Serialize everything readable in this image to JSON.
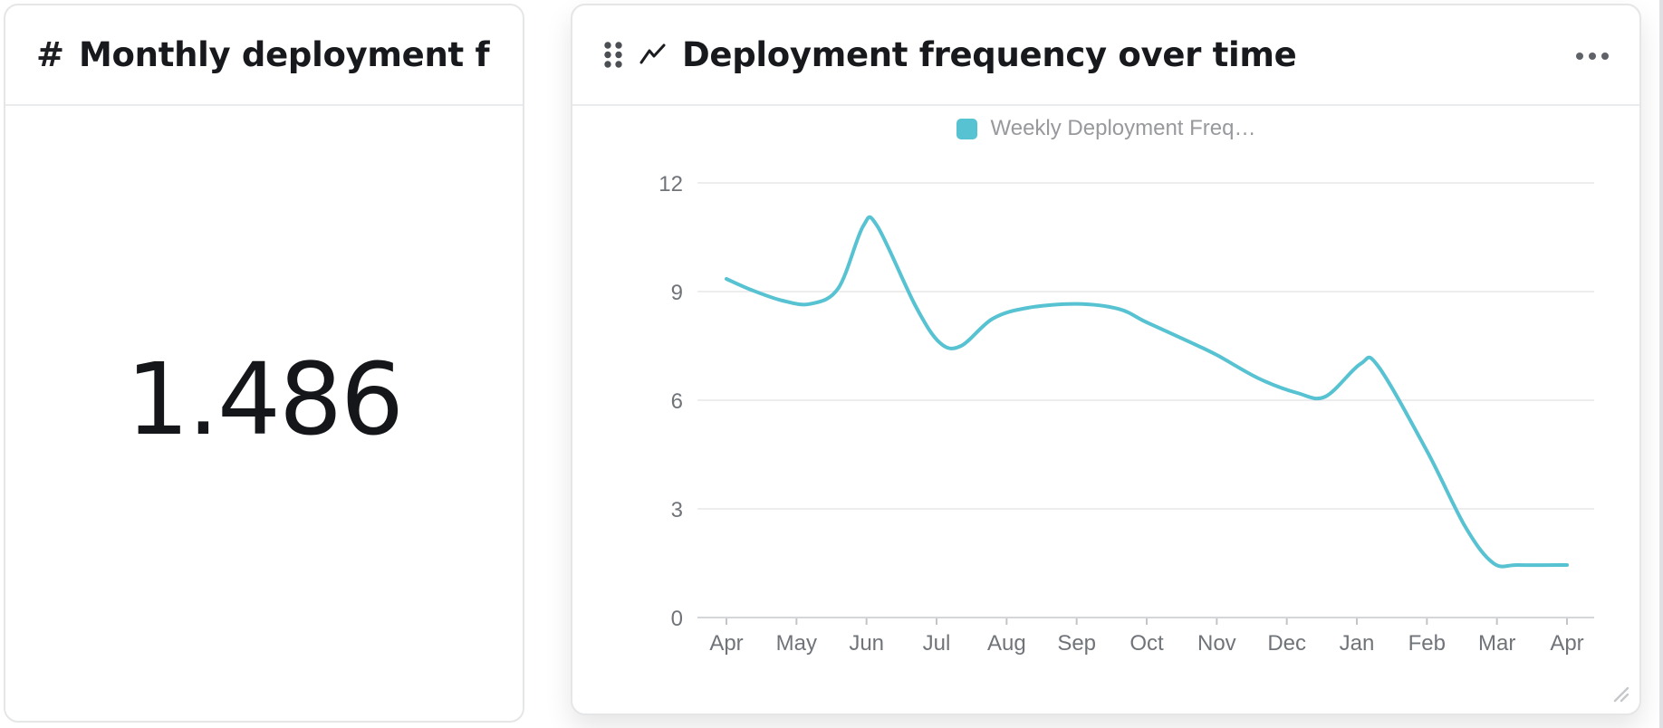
{
  "metric_card": {
    "icon_glyph": "#",
    "title": "Monthly deployment frequen…",
    "value": "1.486"
  },
  "chart_card": {
    "title": "Deployment frequency over time"
  },
  "chart_data": {
    "type": "line",
    "title": "Deployment frequency over time",
    "legend": [
      {
        "label": "Weekly Deployment Freq…",
        "color": "#57c2d2"
      }
    ],
    "legend_position": "top-center",
    "categories": [
      "Apr",
      "May",
      "Jun",
      "Jul",
      "Aug",
      "Sep",
      "Oct",
      "Nov",
      "Dec",
      "Jan",
      "Feb",
      "Mar",
      "Apr"
    ],
    "series": [
      {
        "name": "Weekly Deployment Freq…",
        "values": [
          9.3,
          8.7,
          10.8,
          7.6,
          8.5,
          8.7,
          8.2,
          7.3,
          6.2,
          7.0,
          4.6,
          1.5,
          1.5
        ]
      }
    ],
    "curve_samples": [
      [
        0,
        9.35
      ],
      [
        0.35,
        9.05
      ],
      [
        0.8,
        8.75
      ],
      [
        1.2,
        8.66
      ],
      [
        1.6,
        9.1
      ],
      [
        1.95,
        10.8
      ],
      [
        2.15,
        10.82
      ],
      [
        2.7,
        8.6
      ],
      [
        3.05,
        7.58
      ],
      [
        3.35,
        7.5
      ],
      [
        3.8,
        8.25
      ],
      [
        4.3,
        8.55
      ],
      [
        5,
        8.66
      ],
      [
        5.6,
        8.52
      ],
      [
        6,
        8.15
      ],
      [
        6.6,
        7.62
      ],
      [
        7,
        7.25
      ],
      [
        7.6,
        6.6
      ],
      [
        8.15,
        6.2
      ],
      [
        8.55,
        6.1
      ],
      [
        9.05,
        7.0
      ],
      [
        9.3,
        6.95
      ],
      [
        10,
        4.6
      ],
      [
        10.55,
        2.5
      ],
      [
        10.95,
        1.5
      ],
      [
        11.3,
        1.45
      ],
      [
        12,
        1.45
      ]
    ],
    "ylim": [
      0,
      12
    ],
    "yticks": [
      0,
      3,
      6,
      9,
      12
    ],
    "grid": true,
    "line_color": "#57c2d2",
    "axis_text_color": "#707479",
    "grid_color": "#ededee",
    "axis_line_color": "#d5d6d9",
    "tick_color": "#c2c4c7"
  }
}
